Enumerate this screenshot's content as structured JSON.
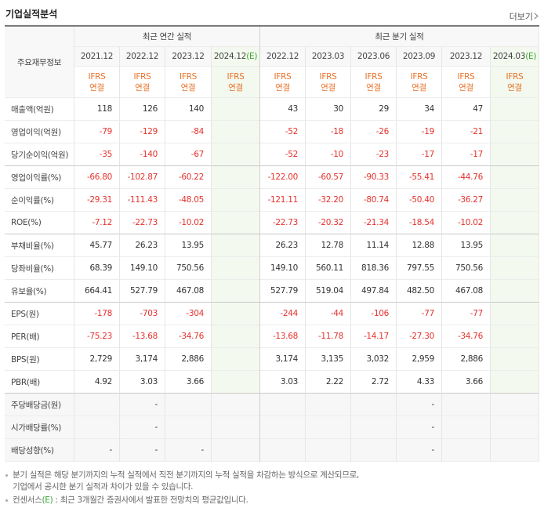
{
  "header": {
    "title": "기업실적분석",
    "more": "더보기"
  },
  "table": {
    "corner": "주요재무정보",
    "groups": [
      "최근 연간 실적",
      "최근 분기 실적"
    ],
    "columns": [
      {
        "date": "2021.12",
        "accounting": [
          "IFRS",
          "연결"
        ]
      },
      {
        "date": "2022.12",
        "accounting": [
          "IFRS",
          "연결"
        ]
      },
      {
        "date": "2023.12",
        "accounting": [
          "IFRS",
          "연결"
        ]
      },
      {
        "date": "2024.12",
        "estimate": "(E)",
        "accounting": [
          "IFRS",
          "연결"
        ]
      },
      {
        "date": "2022.12",
        "accounting": [
          "IFRS",
          "연결"
        ]
      },
      {
        "date": "2023.03",
        "accounting": [
          "IFRS",
          "연결"
        ]
      },
      {
        "date": "2023.06",
        "accounting": [
          "IFRS",
          "연결"
        ]
      },
      {
        "date": "2023.09",
        "accounting": [
          "IFRS",
          "연결"
        ]
      },
      {
        "date": "2023.12",
        "accounting": [
          "IFRS",
          "연결"
        ]
      },
      {
        "date": "2024.03",
        "estimate": "(E)",
        "accounting": [
          "IFRS",
          "연결"
        ]
      }
    ],
    "rows": [
      {
        "label": "매출액(억원)",
        "values": [
          "118",
          "126",
          "140",
          null,
          "43",
          "30",
          "29",
          "34",
          "47",
          null
        ]
      },
      {
        "label": "영업이익(억원)",
        "values": [
          "-79",
          "-129",
          "-84",
          null,
          "-52",
          "-18",
          "-26",
          "-19",
          "-21",
          null
        ]
      },
      {
        "label": "당기순이익(억원)",
        "values": [
          "-35",
          "-140",
          "-67",
          null,
          "-52",
          "-10",
          "-23",
          "-17",
          "-17",
          null
        ]
      },
      {
        "label": "영업이익률(%)",
        "values": [
          "-66.80",
          "-102.87",
          "-60.22",
          null,
          "-122.00",
          "-60.57",
          "-90.33",
          "-55.41",
          "-44.76",
          null
        ]
      },
      {
        "label": "순이익률(%)",
        "values": [
          "-29.31",
          "-111.43",
          "-48.05",
          null,
          "-121.11",
          "-32.20",
          "-80.74",
          "-50.40",
          "-36.27",
          null
        ]
      },
      {
        "label": "ROE(%)",
        "values": [
          "-7.12",
          "-22.73",
          "-10.02",
          null,
          "-22.73",
          "-20.32",
          "-21.34",
          "-18.54",
          "-10.02",
          null
        ]
      },
      {
        "label": "부채비율(%)",
        "values": [
          "45.77",
          "26.23",
          "13.95",
          null,
          "26.23",
          "12.78",
          "11.14",
          "12.88",
          "13.95",
          null
        ]
      },
      {
        "label": "당좌비율(%)",
        "values": [
          "68.39",
          "149.10",
          "750.56",
          null,
          "149.10",
          "560.11",
          "818.36",
          "797.55",
          "750.56",
          null
        ]
      },
      {
        "label": "유보율(%)",
        "values": [
          "664.41",
          "527.79",
          "467.08",
          null,
          "527.79",
          "519.04",
          "497.84",
          "482.50",
          "467.08",
          null
        ]
      },
      {
        "label": "EPS(원)",
        "values": [
          "-178",
          "-703",
          "-304",
          null,
          "-244",
          "-44",
          "-106",
          "-77",
          "-77",
          null
        ]
      },
      {
        "label": "PER(배)",
        "values": [
          "-75.23",
          "-13.68",
          "-34.76",
          null,
          "-13.68",
          "-11.78",
          "-14.17",
          "-27.30",
          "-34.76",
          null
        ]
      },
      {
        "label": "BPS(원)",
        "values": [
          "2,729",
          "3,174",
          "2,886",
          null,
          "3,174",
          "3,135",
          "3,032",
          "2,959",
          "2,886",
          null
        ]
      },
      {
        "label": "PBR(배)",
        "values": [
          "4.92",
          "3.03",
          "3.66",
          null,
          "3.03",
          "2.22",
          "2.72",
          "4.33",
          "3.66",
          null
        ]
      },
      {
        "label": "주당배당금(원)",
        "values": [
          null,
          "-",
          null,
          null,
          null,
          null,
          null,
          "-",
          null,
          null
        ]
      },
      {
        "label": "시가배당률(%)",
        "values": [
          null,
          "-",
          null,
          null,
          null,
          null,
          null,
          "-",
          null,
          null
        ]
      },
      {
        "label": "배당성향(%)",
        "values": [
          "-",
          "-",
          "-",
          null,
          null,
          null,
          null,
          "-",
          null,
          null
        ]
      }
    ]
  },
  "notes": [
    {
      "lines": [
        "분기 실적은 해당 분기까지의 누적 실적에서 직전 분기까지의 누적 실적을 차감하는 방식으로 계산되므로,",
        "기업에서 공시한 분기 실적과 차이가 있을 수 있습니다."
      ]
    },
    {
      "parts": [
        "컨센서스",
        "(E)",
        " : 최근 3개월간 증권사에서 발표한 전망치의 평균값입니다."
      ]
    }
  ]
}
